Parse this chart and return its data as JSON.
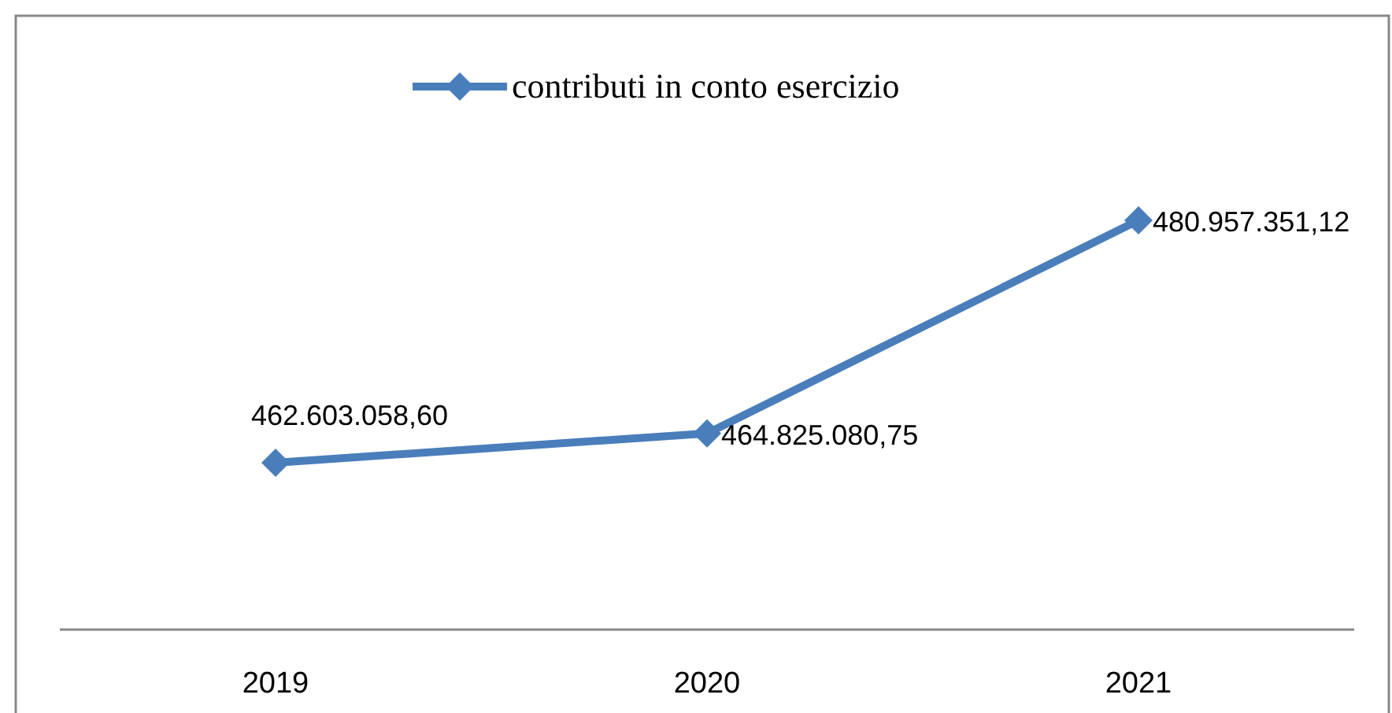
{
  "chart_data": {
    "type": "line",
    "categories": [
      "2019",
      "2020",
      "2021"
    ],
    "series": [
      {
        "name": "contributi in conto esercizio",
        "color": "#4a7ebb",
        "values": [
          462603058.6,
          464825080.75,
          480957351.12
        ],
        "value_labels": [
          "462.603.058,60",
          "464.825.080,75",
          "480.957.351,12"
        ]
      }
    ],
    "tick_labels": "x",
    "marker": "diamond",
    "legend": "top"
  }
}
